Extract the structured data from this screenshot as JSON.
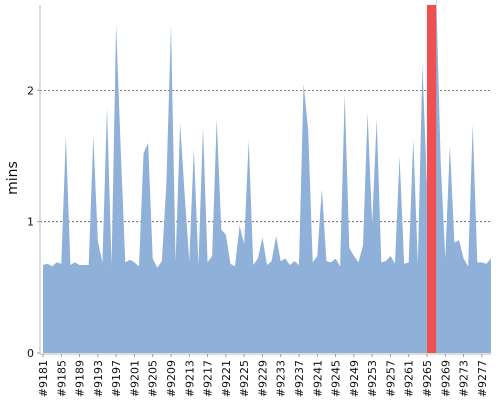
{
  "chart_data": {
    "type": "area",
    "ylabel": "mins",
    "ylim": [
      0,
      2.65
    ],
    "yticks": [
      0,
      1,
      2
    ],
    "ytick_labels": [
      "0",
      "1",
      "2"
    ],
    "grid": "horizontal dotted at y ticks",
    "x": [
      9181,
      9182,
      9183,
      9184,
      9185,
      9186,
      9187,
      9188,
      9189,
      9190,
      9191,
      9192,
      9193,
      9194,
      9195,
      9196,
      9197,
      9198,
      9199,
      9200,
      9201,
      9202,
      9203,
      9204,
      9205,
      9206,
      9207,
      9208,
      9209,
      9210,
      9211,
      9212,
      9213,
      9214,
      9215,
      9216,
      9217,
      9218,
      9219,
      9220,
      9221,
      9222,
      9223,
      9224,
      9225,
      9226,
      9227,
      9228,
      9229,
      9230,
      9231,
      9232,
      9233,
      9234,
      9235,
      9236,
      9237,
      9238,
      9239,
      9240,
      9241,
      9242,
      9243,
      9244,
      9245,
      9246,
      9247,
      9248,
      9249,
      9250,
      9251,
      9252,
      9253,
      9254,
      9255,
      9256,
      9257,
      9258,
      9259,
      9260,
      9261,
      9262,
      9263,
      9264,
      9265,
      9266,
      9267,
      9268,
      9269,
      9270,
      9271,
      9272,
      9273,
      9274,
      9275,
      9276,
      9277,
      9278,
      9279
    ],
    "values": [
      0.67,
      0.68,
      0.66,
      0.69,
      0.68,
      1.65,
      0.67,
      0.69,
      0.67,
      0.67,
      0.67,
      1.65,
      0.85,
      0.69,
      1.87,
      0.67,
      2.5,
      1.55,
      0.69,
      0.71,
      0.69,
      0.66,
      1.52,
      1.6,
      0.72,
      0.65,
      0.7,
      1.3,
      2.5,
      0.7,
      1.75,
      1.2,
      0.7,
      1.56,
      0.67,
      1.72,
      0.69,
      0.74,
      1.78,
      0.94,
      0.9,
      0.68,
      0.66,
      0.97,
      0.83,
      1.62,
      0.67,
      0.72,
      0.88,
      0.67,
      0.7,
      0.89,
      0.7,
      0.72,
      0.67,
      0.7,
      0.67,
      2.05,
      1.7,
      0.69,
      0.74,
      1.25,
      0.7,
      0.69,
      0.72,
      0.66,
      1.97,
      0.8,
      0.74,
      0.69,
      0.82,
      1.83,
      0.98,
      1.78,
      0.69,
      0.7,
      0.74,
      0.68,
      1.5,
      0.68,
      0.69,
      1.63,
      0.68,
      2.2,
      1.26,
      1.3,
      2.75,
      1.45,
      0.72,
      1.58,
      0.84,
      0.86,
      0.72,
      0.66,
      1.74,
      0.69,
      0.69,
      0.68,
      0.72
    ],
    "highlight": {
      "from": 9265,
      "to": 9267,
      "color": "#f05050"
    },
    "colors": {
      "area": "#8fb0d8",
      "highlight": "#f05050",
      "grid": "#555555",
      "axis": "#999999",
      "text": "#111111"
    },
    "tick_labels": [
      "#9181",
      "#9185",
      "#9189",
      "#9193",
      "#9197",
      "#9201",
      "#9205",
      "#9209",
      "#9213",
      "#9217",
      "#9221",
      "#9225",
      "#9229",
      "#9233",
      "#9237",
      "#9241",
      "#9245",
      "#9249",
      "#9253",
      "#9257",
      "#9261",
      "#9265",
      "#9269",
      "#9273",
      "#9277"
    ],
    "tick_values": [
      9181,
      9185,
      9189,
      9193,
      9197,
      9201,
      9205,
      9209,
      9213,
      9217,
      9221,
      9225,
      9229,
      9233,
      9237,
      9241,
      9245,
      9249,
      9253,
      9257,
      9261,
      9265,
      9269,
      9273,
      9277
    ]
  }
}
